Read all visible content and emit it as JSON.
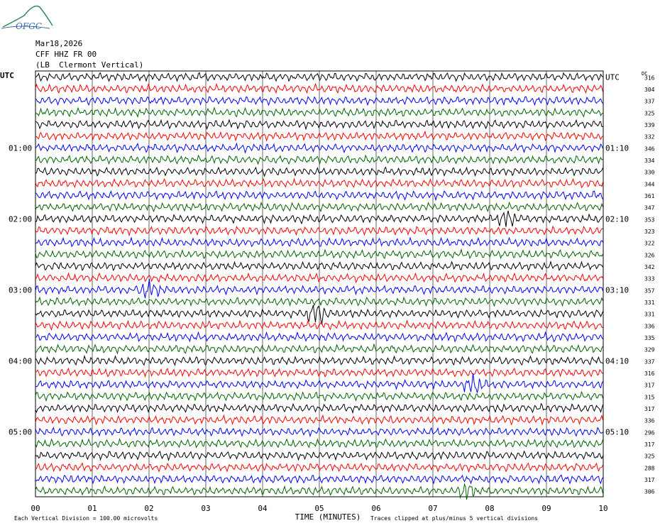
{
  "logo": {
    "text": "OFGC",
    "color": "#3a6aa8",
    "accent": "#2e8b57"
  },
  "header": {
    "date": "Mar18,2026",
    "station": "CFF HHZ FR 00",
    "location": "(LB  Clermont Vertical)"
  },
  "chart_data": {
    "type": "line",
    "title": "",
    "left_axis_label": "UTC",
    "right_axis_label": "UTC",
    "dc_label": "DC",
    "xlabel": "TIME (MINUTES)",
    "xlim": [
      0,
      10
    ],
    "x_ticks": [
      "00",
      "01",
      "02",
      "03",
      "04",
      "05",
      "06",
      "07",
      "08",
      "09",
      "10"
    ],
    "trace_colors": [
      "#000000",
      "#ff0000",
      "#0000ff",
      "#006400"
    ],
    "left_hour_labels": [
      {
        "row": 6,
        "text": "01:00"
      },
      {
        "row": 12,
        "text": "02:00"
      },
      {
        "row": 18,
        "text": "03:00"
      },
      {
        "row": 24,
        "text": "04:00"
      },
      {
        "row": 30,
        "text": "05:00"
      }
    ],
    "right_hour_labels": [
      {
        "row": 0,
        "text": "UTC"
      },
      {
        "row": 6,
        "text": "01:10"
      },
      {
        "row": 12,
        "text": "02:10"
      },
      {
        "row": 18,
        "text": "03:10"
      },
      {
        "row": 24,
        "text": "04:10"
      },
      {
        "row": 30,
        "text": "05:10"
      }
    ],
    "dc_values": [
      "316",
      "304",
      "337",
      "325",
      "339",
      "332",
      "346",
      "334",
      "330",
      "344",
      "361",
      "347",
      "353",
      "323",
      "322",
      "326",
      "342",
      "333",
      "357",
      "331",
      "331",
      "336",
      "335",
      "329",
      "337",
      "316",
      "317",
      "315",
      "317",
      "336",
      "296",
      "317",
      "325",
      "288",
      "317",
      "306"
    ],
    "events": [
      {
        "row": 18,
        "minute": 2.0,
        "strength": 2.2
      },
      {
        "row": 20,
        "minute": 4.95,
        "strength": 3.0
      },
      {
        "row": 26,
        "minute": 7.7,
        "strength": 2.0
      },
      {
        "row": 35,
        "minute": 7.6,
        "strength": 1.8
      },
      {
        "row": 12,
        "minute": 8.3,
        "strength": 1.6
      }
    ]
  },
  "footer": {
    "scale_note": "Each Vertical Division =  100.00 microvolts",
    "clip_note": "Traces clipped at plus/minus 5 vertical divisions"
  }
}
